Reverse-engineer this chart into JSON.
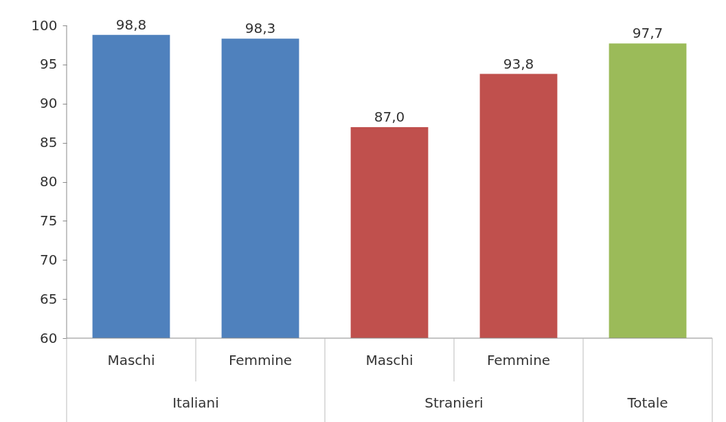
{
  "chart_data": {
    "type": "bar",
    "categories": [
      "Maschi",
      "Femmine",
      "Maschi",
      "Femmine",
      null
    ],
    "values": [
      98.8,
      98.3,
      87.0,
      93.8,
      97.7
    ],
    "colors": [
      "#4f81bd",
      "#4f81bd",
      "#c0504d",
      "#c0504d",
      "#9bbb59"
    ],
    "value_labels": [
      "98,8",
      "98,3",
      "87,0",
      "93,8",
      "97,7"
    ],
    "ylim": [
      60,
      100
    ],
    "yticks": [
      60,
      65,
      70,
      75,
      80,
      85,
      90,
      95,
      100
    ],
    "annotations": [
      "Italiani",
      "Stranieri",
      "Totale"
    ],
    "grid": false
  }
}
